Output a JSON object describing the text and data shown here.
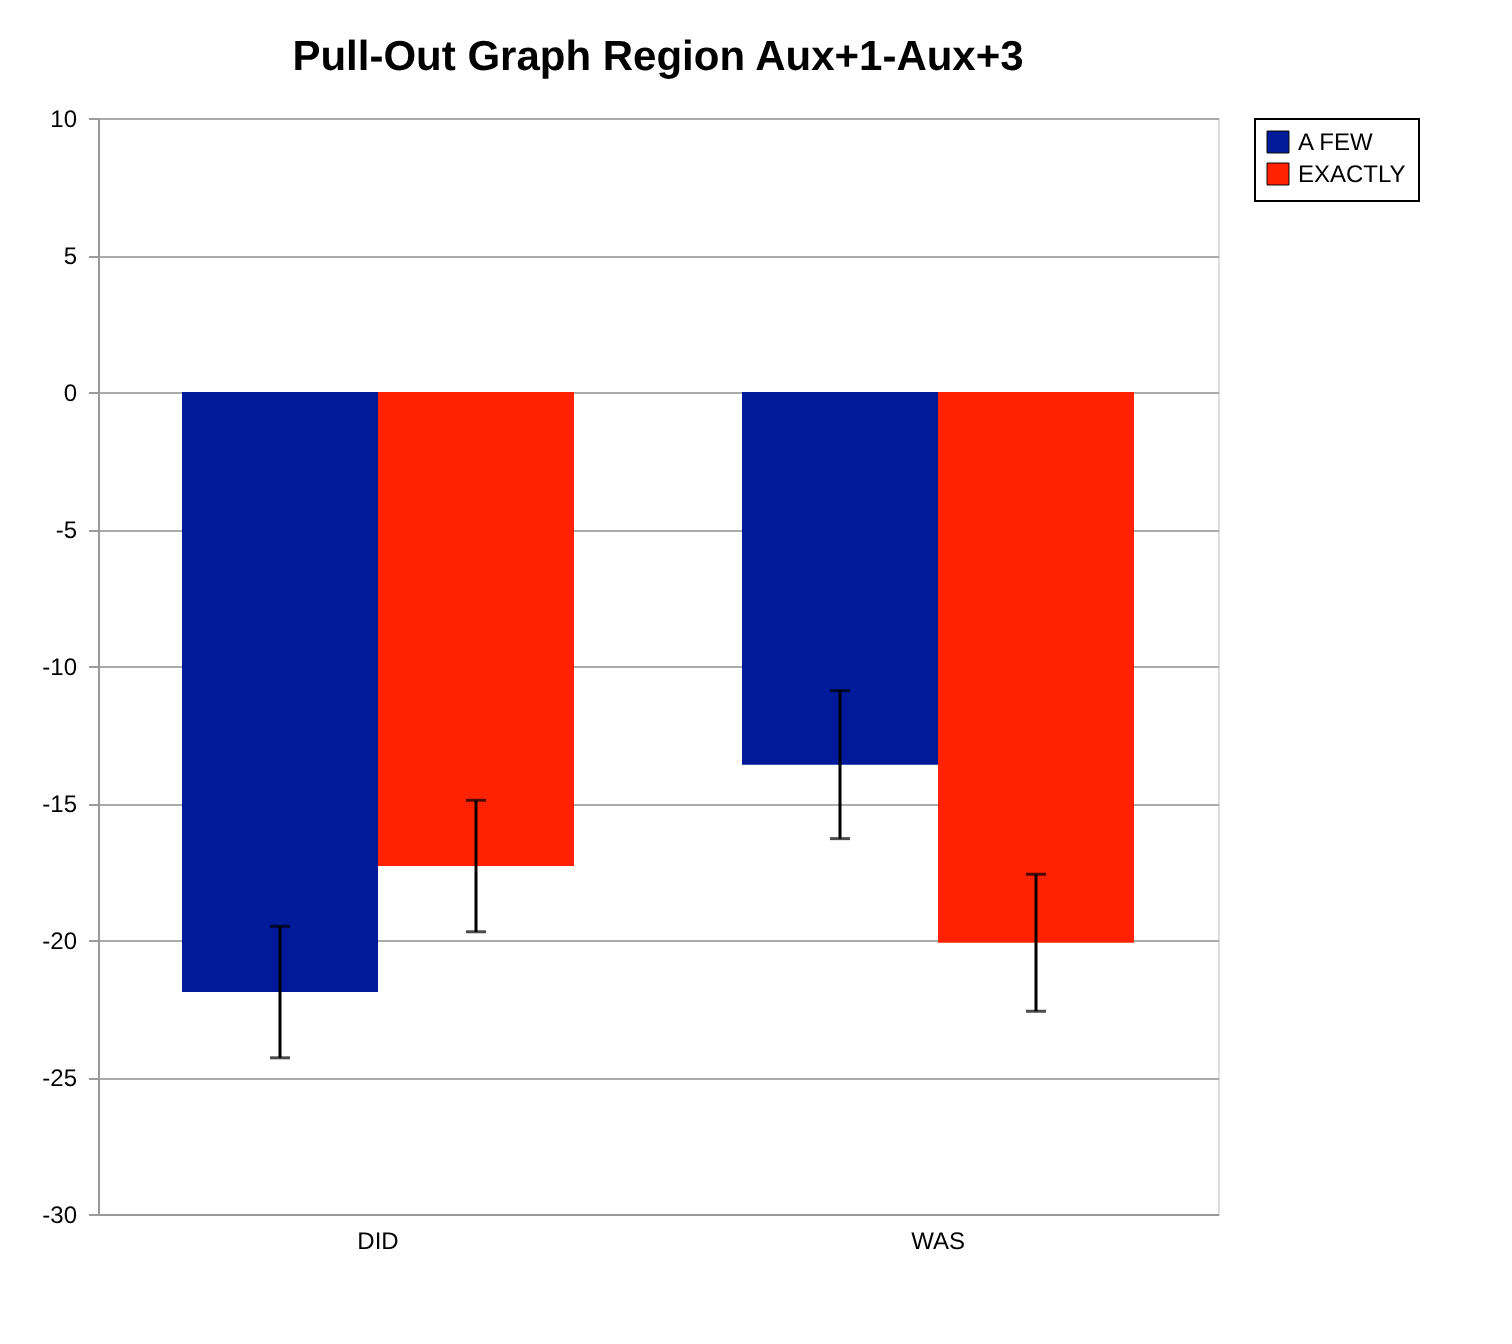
{
  "chart_data": {
    "type": "bar",
    "title": "Pull-Out Graph Region Aux+1-Aux+3",
    "categories": [
      "DID",
      "WAS"
    ],
    "series": [
      {
        "name": "A FEW",
        "color": "#001a99",
        "values": [
          -21.9,
          -13.6
        ],
        "errors": [
          2.4,
          2.7
        ]
      },
      {
        "name": "EXACTLY",
        "color": "#ff2200",
        "values": [
          -17.3,
          -20.1
        ],
        "errors": [
          2.4,
          2.5
        ]
      }
    ],
    "ylim": [
      -30,
      10
    ],
    "yticks": [
      -30,
      -25,
      -20,
      -15,
      -10,
      -5,
      0,
      5,
      10
    ],
    "grid": "y",
    "legend": "right"
  }
}
